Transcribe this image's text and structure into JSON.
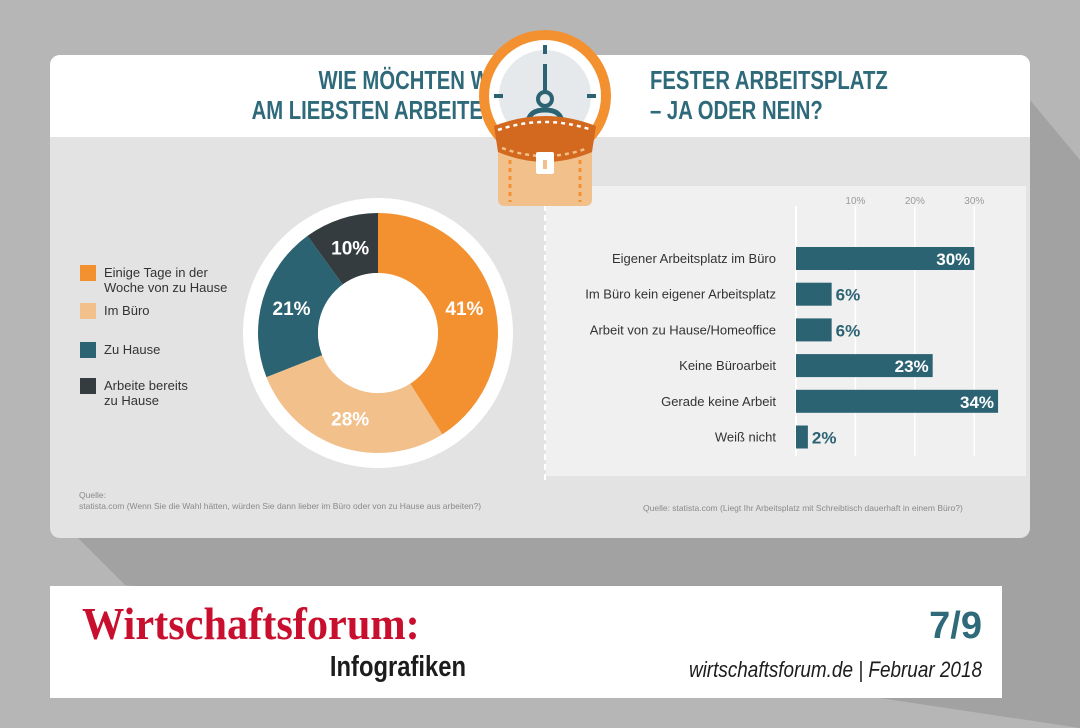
{
  "header": {
    "left_title": [
      "WIE MÖCHTEN WIR",
      "AM LIEBSTEN ARBEITEN?"
    ],
    "right_title": [
      "FESTER ARBEITSPLATZ",
      "– JA ODER NEIN?"
    ]
  },
  "colors": {
    "orange": "#f39131",
    "light_orange": "#f2c08b",
    "teal": "#2c6373",
    "dark": "#353c40",
    "headline": "#2f6a7a",
    "brand_red": "#c8102e"
  },
  "icons": {
    "header": "clock-briefcase-icon"
  },
  "chart_data": [
    {
      "type": "pie",
      "labels": [
        "Einige Tage in der Woche von zu Hause",
        "Im Büro",
        "Zu Hause",
        "Arbeite bereits zu Hause"
      ],
      "legend_lines": [
        [
          "Einige Tage in der",
          "Woche von zu Hause"
        ],
        [
          "Im Büro"
        ],
        [
          "Zu Hause"
        ],
        [
          "Arbeite bereits",
          "zu Hause"
        ]
      ],
      "values": [
        41,
        28,
        21,
        10
      ],
      "value_labels": [
        "41%",
        "28%",
        "21%",
        "10%"
      ],
      "colors": [
        "#f39131",
        "#f2c08b",
        "#2c6373",
        "#353c40"
      ],
      "donut": true,
      "legend": "left",
      "source": [
        "Quelle:",
        "statista.com (Wenn Sie die Wahl hätten, würden Sie dann lieber im Büro oder von zu Hause aus arbeiten?)"
      ]
    },
    {
      "type": "bar",
      "orientation": "horizontal",
      "categories": [
        "Eigener Arbeitsplatz im Büro",
        "Im Büro kein eigener Arbeitsplatz",
        "Arbeit von zu Hause/Homeoffice",
        "Keine Büroarbeit",
        "Gerade keine Arbeit",
        "Weiß nicht"
      ],
      "values": [
        30,
        6,
        6,
        23,
        34,
        2
      ],
      "value_labels": [
        "30%",
        "6%",
        "6%",
        "23%",
        "34%",
        "2%"
      ],
      "xticks": [
        "10%",
        "20%",
        "30%"
      ],
      "xtick_values": [
        10,
        20,
        30
      ],
      "xlim": [
        0,
        35
      ],
      "color": "#2c6373",
      "grid": true,
      "source": "Quelle: statista.com (Liegt Ihr Arbeitsplatz mit Schreibtisch dauerhaft in einem Büro?)"
    }
  ],
  "footer": {
    "brand": "Wirtschaftsforum:",
    "subtitle": "Infografiken",
    "page": "7/9",
    "site": "wirtschaftsforum.de | Februar 2018"
  }
}
